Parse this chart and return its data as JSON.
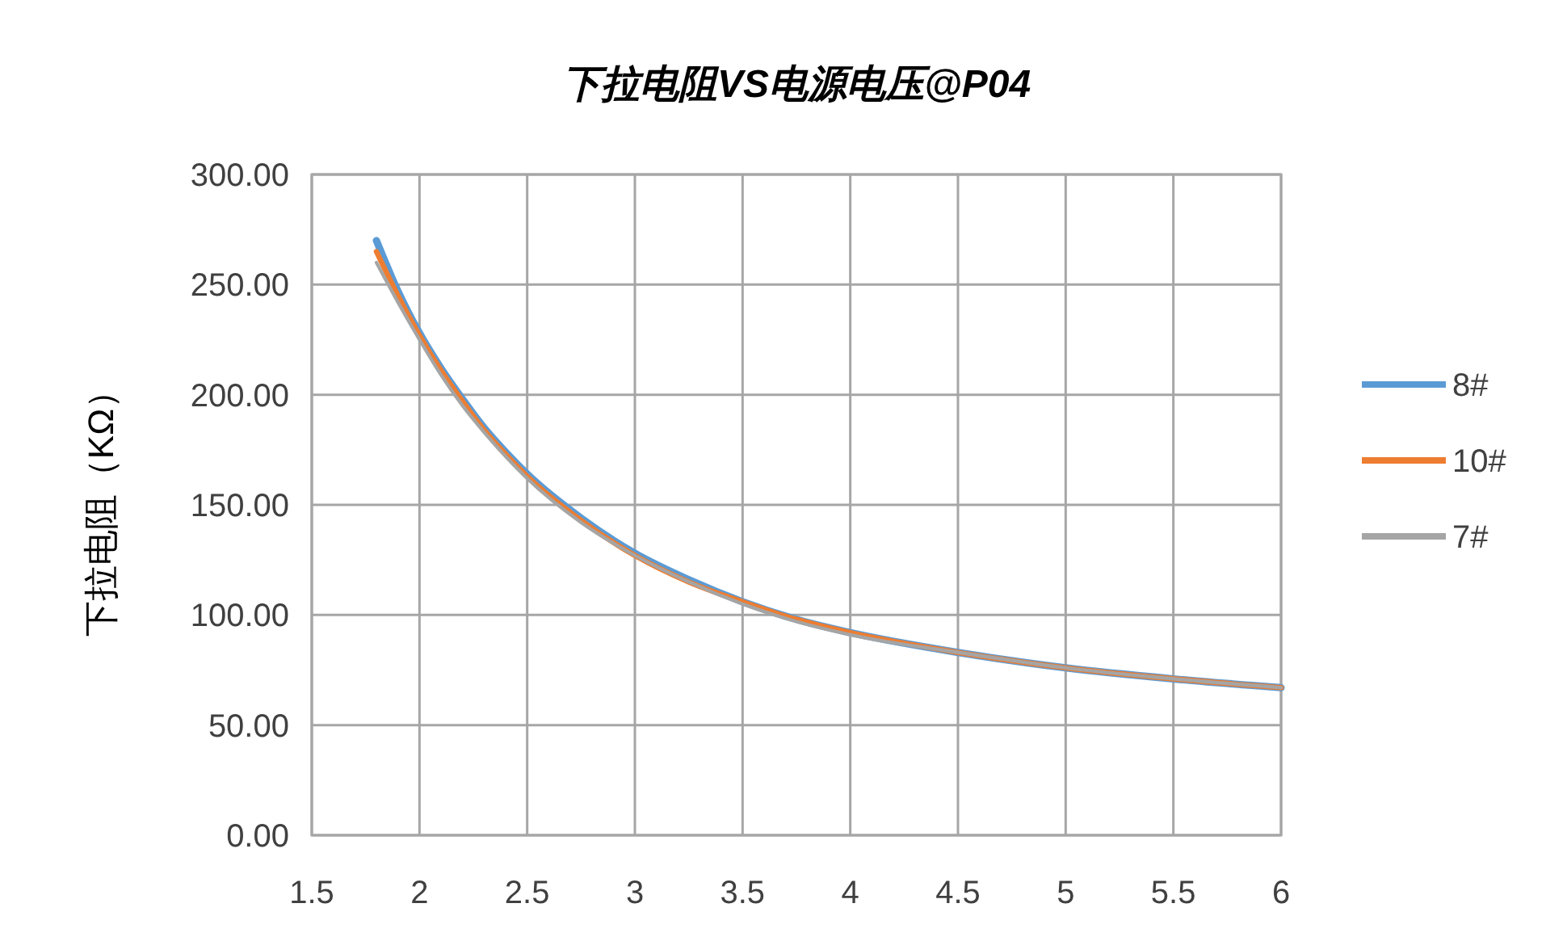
{
  "chart_data": {
    "type": "line",
    "title": "下拉电阻VS电源电压@P04",
    "ylabel": "下拉电阻（KΩ）",
    "x": [
      1.8,
      1.9,
      2.0,
      2.1,
      2.2,
      2.3,
      2.4,
      2.5,
      2.75,
      3.0,
      3.25,
      3.5,
      3.75,
      4.0,
      4.5,
      5.0,
      5.5,
      6.0
    ],
    "series": [
      {
        "name": "8#",
        "color": "#5b9bd5",
        "values": [
          270,
          247,
          228,
          212,
          198,
          185,
          174,
          164,
          144,
          128,
          116,
          106,
          98,
          92,
          83,
          76,
          71,
          67
        ]
      },
      {
        "name": "10#",
        "color": "#ed7d31",
        "values": [
          265,
          245,
          227,
          211,
          197,
          184,
          173,
          163,
          143,
          127,
          115,
          106,
          98,
          92,
          83,
          76,
          71,
          67
        ]
      },
      {
        "name": "7#",
        "color": "#a5a5a5",
        "values": [
          260,
          242,
          225,
          209,
          195,
          183,
          172,
          162,
          142,
          127,
          115,
          105,
          97,
          91,
          83,
          76,
          71,
          67
        ]
      }
    ],
    "xlim": [
      1.5,
      6
    ],
    "xticks": [
      1.5,
      2,
      2.5,
      3,
      3.5,
      4,
      4.5,
      5,
      5.5,
      6
    ],
    "ylim": [
      0,
      300
    ],
    "yticks": [
      {
        "value": 0,
        "label": "0.00"
      },
      {
        "value": 50,
        "label": "50.00"
      },
      {
        "value": 100,
        "label": "100.00"
      },
      {
        "value": 150,
        "label": "150.00"
      },
      {
        "value": 200,
        "label": "200.00"
      },
      {
        "value": 250,
        "label": "250.00"
      },
      {
        "value": 300,
        "label": "300.00"
      }
    ],
    "grid": true,
    "legend": "right",
    "line_style": "solid",
    "marker": "none"
  }
}
